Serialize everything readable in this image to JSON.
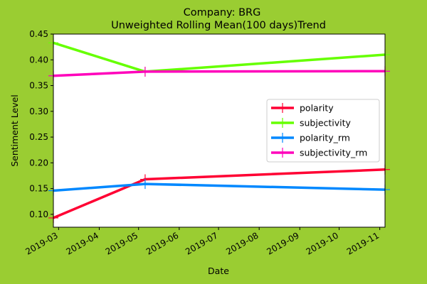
{
  "chart_data": {
    "type": "line",
    "title": "Company: BRG",
    "subtitle": "Unweighted Rolling Mean(100 days)Trend",
    "xlabel": "Date",
    "ylabel": "Sentiment Level",
    "xlim": [
      "2019-02-25",
      "2019-11-05"
    ],
    "ylim": [
      0.075,
      0.45
    ],
    "x_ticks": [
      "2019-03",
      "2019-04",
      "2019-05",
      "2019-06",
      "2019-07",
      "2019-08",
      "2019-09",
      "2019-10",
      "2019-11"
    ],
    "y_ticks": [
      0.1,
      0.15,
      0.2,
      0.25,
      0.3,
      0.35,
      0.4,
      0.45
    ],
    "grid": false,
    "legend_position": "center-right",
    "series": [
      {
        "name": "polarity",
        "color": "#ff0033",
        "points": [
          [
            "2019-02-25",
            0.093
          ],
          [
            "2019-05-06",
            0.168
          ],
          [
            "2019-11-05",
            0.187
          ]
        ]
      },
      {
        "name": "subjectivity",
        "color": "#66ff00",
        "points": [
          [
            "2019-02-25",
            0.433
          ],
          [
            "2019-05-06",
            0.377
          ],
          [
            "2019-11-05",
            0.41
          ]
        ]
      },
      {
        "name": "polarity_rm",
        "color": "#0088ff",
        "points": [
          [
            "2019-02-25",
            0.146
          ],
          [
            "2019-05-06",
            0.159
          ],
          [
            "2019-11-05",
            0.148
          ]
        ]
      },
      {
        "name": "subjectivity_rm",
        "color": "#ff00bb",
        "points": [
          [
            "2019-02-25",
            0.369
          ],
          [
            "2019-05-06",
            0.377
          ],
          [
            "2019-11-05",
            0.378
          ]
        ]
      }
    ]
  }
}
